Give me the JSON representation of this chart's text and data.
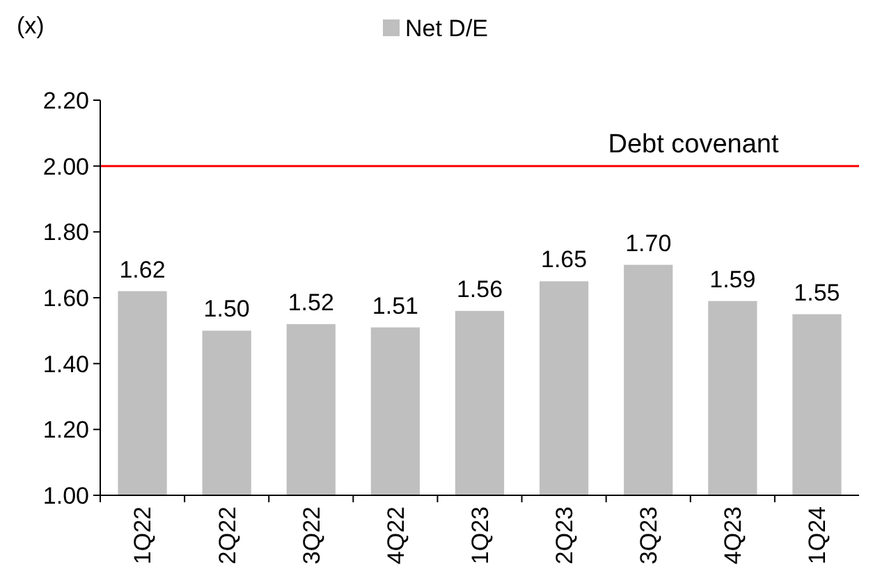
{
  "chart_data": {
    "type": "bar",
    "ylabel": "(x)",
    "categories": [
      "1Q22",
      "2Q22",
      "3Q22",
      "4Q22",
      "1Q23",
      "2Q23",
      "3Q23",
      "4Q23",
      "1Q24"
    ],
    "series": [
      {
        "name": "Net D/E",
        "color": "#bfbfbf",
        "values": [
          1.62,
          1.5,
          1.52,
          1.51,
          1.56,
          1.65,
          1.7,
          1.59,
          1.55
        ],
        "value_labels": [
          "1.62",
          "1.50",
          "1.52",
          "1.51",
          "1.56",
          "1.65",
          "1.70",
          "1.59",
          "1.55"
        ]
      }
    ],
    "ylim": [
      1.0,
      2.2
    ],
    "yticks": [
      {
        "value": 1.0,
        "label": "1.00"
      },
      {
        "value": 1.2,
        "label": "1.20"
      },
      {
        "value": 1.4,
        "label": "1.40"
      },
      {
        "value": 1.6,
        "label": "1.60"
      },
      {
        "value": 1.8,
        "label": "1.80"
      },
      {
        "value": 2.0,
        "label": "2.00"
      },
      {
        "value": 2.2,
        "label": "2.20"
      }
    ],
    "ref_lines": [
      {
        "axis": "y",
        "value": 2.0,
        "label": "Debt covenant",
        "color": "#ff0000"
      }
    ],
    "legend": "top",
    "grid": false
  }
}
